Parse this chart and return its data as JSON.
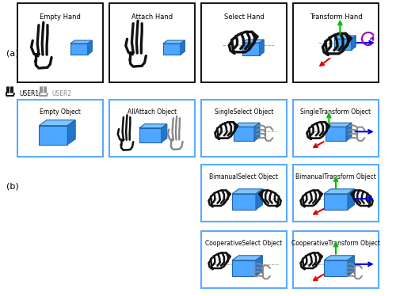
{
  "fig_width": 5.0,
  "fig_height": 3.74,
  "dpi": 100,
  "background": "#ffffff",
  "box_border_black": "#000000",
  "box_border_blue": "#5aabff",
  "cube_front": "#4da6ff",
  "cube_top": "#7dc4ff",
  "cube_right": "#2277cc",
  "cube_edge": "#2266aa",
  "label_a": "(a)",
  "label_b": "(b)",
  "user1_label": "USER1",
  "user2_label": "USER2",
  "row_a_labels": [
    "Empty Hand",
    "Attach Hand",
    "Select Hand",
    "Transform Hand"
  ],
  "row_b_top_labels": [
    "Empty Object",
    "AllAttach Object",
    "SingleSelect Object",
    "SingleTransform Object"
  ],
  "row_b_mid_labels": [
    "BimanualSelect Object",
    "BimanualTransform Object"
  ],
  "row_b_bot_labels": [
    "CooperativeSelect Object",
    "CooperativeTransform Object"
  ],
  "arrow_green": "#00bb00",
  "arrow_red": "#dd0000",
  "arrow_blue": "#0000dd",
  "arrow_purple": "#9900bb",
  "hand_black": "#111111",
  "hand_gray": "#888888"
}
